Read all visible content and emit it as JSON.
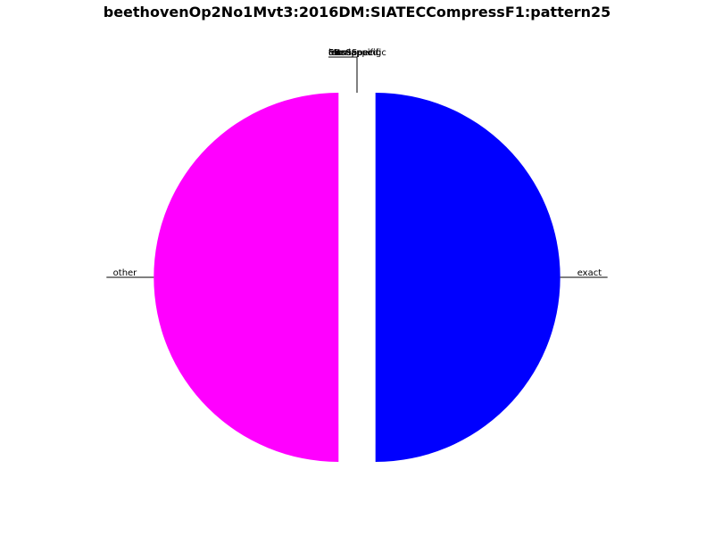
{
  "chart_data": {
    "type": "pie",
    "title": "beethovenOp2No1Mvt3:2016DM:SIATECCompressF1:pattern25",
    "slices": [
      {
        "label": "other",
        "value": 50,
        "color": "#ff00ff",
        "explode": 0.1
      },
      {
        "label": "exact",
        "value": 50,
        "color": "#0000ff",
        "explode": 0.1
      },
      {
        "label": "moreSpecific",
        "value": 0,
        "color": "#00aa00",
        "explode": 0
      },
      {
        "label": "lessSpecific",
        "value": 0,
        "color": "#aa0000",
        "explode": 0
      },
      {
        "label": "overlapping",
        "value": 0,
        "color": "#00aaaa",
        "explode": 0
      },
      {
        "label": "transposed",
        "value": 0,
        "color": "#aaaa00",
        "explode": 0
      },
      {
        "label": "FN",
        "value": 0,
        "color": "#555555",
        "explode": 0
      },
      {
        "label": "FP",
        "value": 0,
        "color": "#999999",
        "explode": 0
      }
    ]
  }
}
